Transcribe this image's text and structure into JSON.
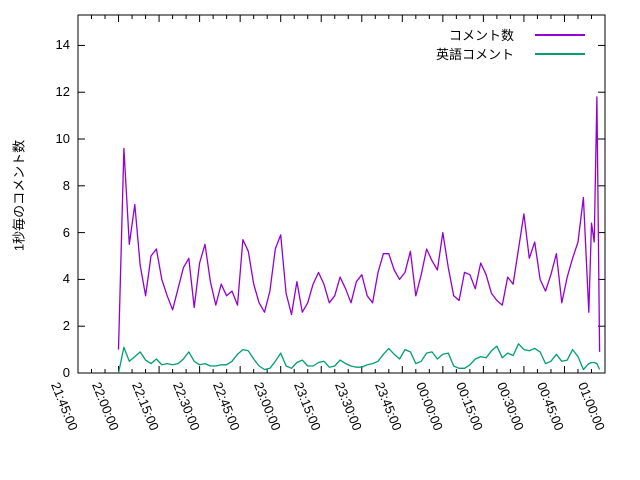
{
  "chart_data": {
    "type": "line",
    "title": "",
    "xlabel": "",
    "ylabel": "1秒毎のコメント数",
    "grid": false,
    "background_color": "#ffffff",
    "axis_color": "#000000",
    "legend_position": "top-right-inside",
    "x_axis": {
      "unit": "time (HH:MM:SS)",
      "range_minutes": [
        0,
        195
      ],
      "major_tick_interval_minutes": 15,
      "minor_tick_interval_minutes": 5,
      "tick_labels": [
        "21:45:00",
        "22:00:00",
        "22:15:00",
        "22:30:00",
        "22:45:00",
        "23:00:00",
        "23:15:00",
        "23:30:00",
        "23:45:00",
        "00:00:00",
        "00:15:00",
        "00:30:00",
        "00:45:00",
        "01:00:00"
      ],
      "tick_minutes": [
        0,
        15,
        30,
        45,
        60,
        75,
        90,
        105,
        120,
        135,
        150,
        165,
        180,
        195
      ]
    },
    "y_axis": {
      "range": [
        0,
        15.3
      ],
      "tick_values": [
        0,
        2,
        4,
        6,
        8,
        10,
        12,
        14
      ],
      "tick_labels": [
        "0",
        "2",
        "4",
        "6",
        "8",
        "10",
        "12",
        "14"
      ]
    },
    "x_minutes": [
      15,
      17,
      19,
      21,
      23,
      25,
      27,
      29,
      31,
      33,
      35,
      37,
      39,
      41,
      43,
      45,
      47,
      49,
      51,
      53,
      55,
      57,
      59,
      61,
      63,
      65,
      67,
      69,
      71,
      73,
      75,
      77,
      79,
      81,
      83,
      85,
      87,
      89,
      91,
      93,
      95,
      97,
      99,
      101,
      103,
      105,
      107,
      109,
      111,
      113,
      115,
      117,
      119,
      121,
      123,
      125,
      127,
      129,
      131,
      133,
      135,
      137,
      139,
      141,
      143,
      145,
      147,
      149,
      151,
      153,
      155,
      157,
      159,
      161,
      163,
      165,
      167,
      169,
      171,
      173,
      175,
      177,
      179,
      181,
      183,
      185,
      187,
      189,
      190,
      191,
      192,
      193
    ],
    "series": [
      {
        "name": "コメント数",
        "color": "#9400d3",
        "values": [
          1.0,
          9.6,
          5.5,
          7.2,
          4.6,
          3.3,
          5.0,
          5.3,
          4.0,
          3.3,
          2.7,
          3.6,
          4.5,
          4.9,
          2.8,
          4.7,
          5.5,
          3.9,
          2.9,
          3.8,
          3.3,
          3.5,
          2.9,
          5.7,
          5.2,
          3.8,
          3.0,
          2.6,
          3.5,
          5.3,
          5.9,
          3.4,
          2.5,
          3.9,
          2.6,
          3.0,
          3.8,
          4.3,
          3.8,
          3.0,
          3.3,
          4.1,
          3.6,
          3.0,
          3.9,
          4.2,
          3.3,
          3.0,
          4.3,
          5.1,
          5.1,
          4.4,
          4.0,
          4.3,
          5.2,
          3.3,
          4.2,
          5.3,
          4.8,
          4.4,
          6.0,
          4.5,
          3.3,
          3.1,
          4.3,
          4.2,
          3.6,
          4.7,
          4.2,
          3.4,
          3.1,
          2.9,
          4.1,
          3.8,
          5.3,
          6.8,
          4.9,
          5.6,
          4.0,
          3.5,
          4.2,
          5.1,
          3.0,
          4.1,
          4.9,
          5.6,
          7.5,
          2.6,
          6.4,
          5.6,
          11.8,
          0.9
        ]
      },
      {
        "name": "英語コメント",
        "color": "#009e73",
        "values": [
          0.0,
          1.1,
          0.5,
          0.7,
          0.9,
          0.55,
          0.4,
          0.6,
          0.35,
          0.4,
          0.35,
          0.4,
          0.6,
          0.9,
          0.5,
          0.35,
          0.4,
          0.3,
          0.3,
          0.35,
          0.35,
          0.5,
          0.8,
          1.0,
          0.95,
          0.6,
          0.3,
          0.15,
          0.2,
          0.5,
          0.85,
          0.3,
          0.2,
          0.45,
          0.55,
          0.3,
          0.3,
          0.45,
          0.5,
          0.25,
          0.3,
          0.55,
          0.4,
          0.3,
          0.25,
          0.25,
          0.35,
          0.4,
          0.5,
          0.8,
          1.05,
          0.8,
          0.6,
          1.0,
          0.9,
          0.4,
          0.5,
          0.85,
          0.9,
          0.6,
          0.8,
          0.85,
          0.3,
          0.2,
          0.2,
          0.35,
          0.6,
          0.7,
          0.65,
          0.95,
          1.15,
          0.65,
          0.85,
          0.75,
          1.25,
          1.0,
          0.95,
          1.05,
          0.9,
          0.4,
          0.5,
          0.8,
          0.5,
          0.55,
          1.0,
          0.7,
          0.15,
          0.4,
          0.45,
          0.45,
          0.4,
          0.15
        ]
      }
    ]
  }
}
